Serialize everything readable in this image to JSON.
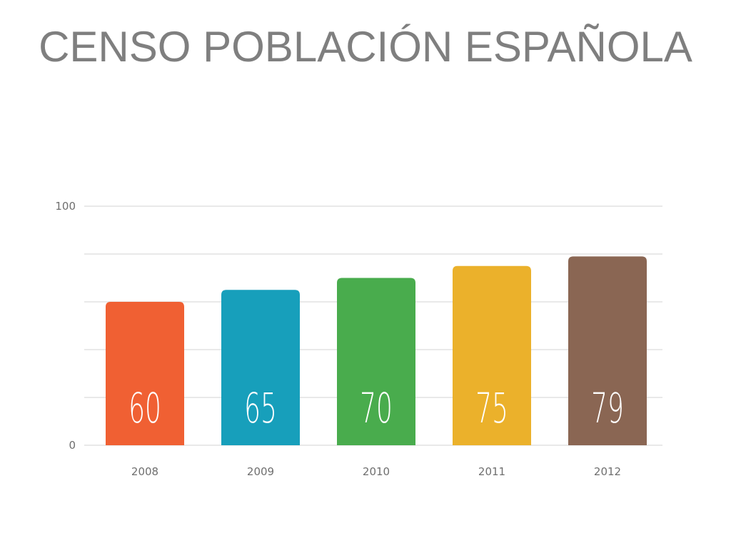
{
  "title": "CENSO POBLACIÓN ESPAÑOLA",
  "chart_data": {
    "type": "bar",
    "categories": [
      "2008",
      "2009",
      "2010",
      "2011",
      "2012"
    ],
    "values": [
      60,
      65,
      70,
      75,
      79
    ],
    "data_labels": [
      "60",
      "65",
      "70",
      "75",
      "79"
    ],
    "colors": [
      "#f06033",
      "#179fbb",
      "#49ac4d",
      "#ebb12b",
      "#8a6653"
    ],
    "ylim": [
      0,
      100
    ],
    "y_ticks": [
      0,
      20,
      40,
      60,
      80,
      100
    ],
    "y_tick_labels_shown": [
      "0",
      "100"
    ],
    "grid": true,
    "legend": "none",
    "xlabel": "",
    "ylabel": ""
  }
}
